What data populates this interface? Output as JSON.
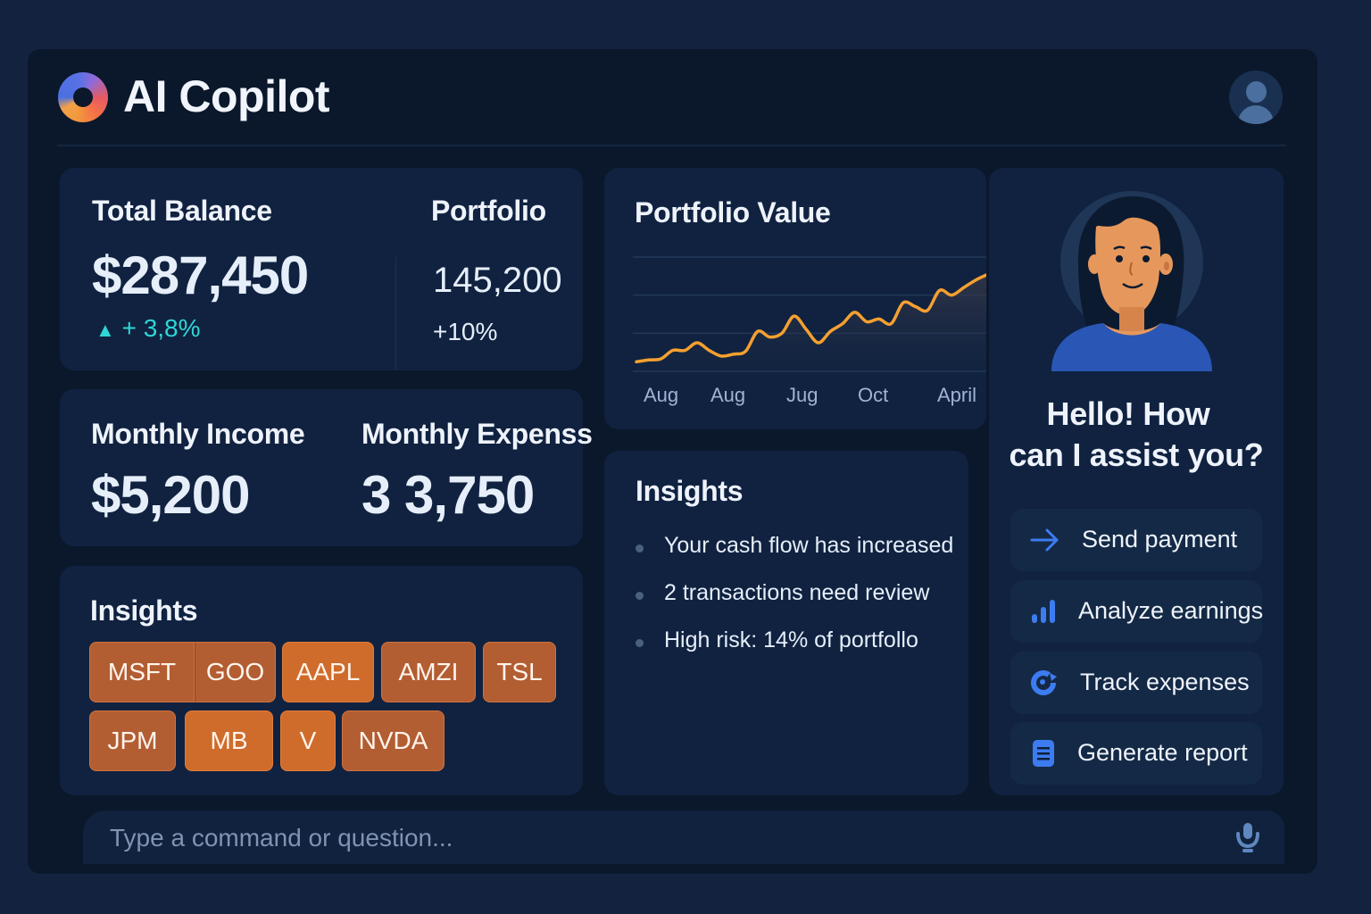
{
  "app": {
    "title": "AI Copilot",
    "logo_icon": "gradient-ring-logo",
    "profile_icon": "user-avatar-icon"
  },
  "colors": {
    "page_bg": "#13233f",
    "window_bg": "#0b182b",
    "card_bg": "#102240",
    "accent_orange": "#f5a030",
    "positive_teal": "#2fd6d6",
    "action_blue": "#3d7cf0",
    "chip_orange_dark": "#b35d33",
    "chip_orange_light": "#cf6c2c"
  },
  "balance_card": {
    "total_label": "Total Balance",
    "total_value": "$287,450",
    "total_change_icon": "triangle-up-icon",
    "total_change": "+ 3,8%",
    "portfolio_label": "Portfolio",
    "portfolio_value": "145,200",
    "portfolio_change": "+10%"
  },
  "monthly_card": {
    "income_label": "Monthly Income",
    "income_value": "$5,200",
    "expense_label": "Monthly Expenss",
    "expense_value": "3 3,750"
  },
  "tickers_card": {
    "title": "Insights",
    "tickers": [
      "MSFT",
      "GOO",
      "AAPL",
      "AMZI",
      "TSL",
      "JPM",
      "MB",
      "V",
      "NVDA"
    ]
  },
  "chart_card": {
    "title": "Portfolio Value"
  },
  "chart_data": {
    "type": "area",
    "title": "Portfolio Value",
    "categories": [
      "Aug",
      "Aug",
      "Jug",
      "Oct",
      "April"
    ],
    "x": [
      0,
      1,
      2,
      3,
      4,
      5,
      6,
      7,
      8,
      9,
      10,
      11,
      12,
      13,
      14,
      15,
      16,
      17,
      18,
      19,
      20,
      21,
      22,
      23,
      24,
      25,
      26,
      27,
      28,
      29
    ],
    "series": [
      {
        "name": "Portfolio Value",
        "color": "#f5a030",
        "values": [
          10,
          12,
          13,
          22,
          22,
          30,
          22,
          16,
          18,
          21,
          42,
          36,
          40,
          58,
          44,
          30,
          42,
          50,
          62,
          52,
          55,
          50,
          72,
          68,
          64,
          85,
          80,
          88,
          96,
          102
        ]
      }
    ],
    "grid": true,
    "gridlines": 4,
    "xlabel": "",
    "ylabel": "",
    "ylim": [
      0,
      120
    ],
    "legend": "none"
  },
  "insights_card": {
    "title": "Insights",
    "items": [
      "Your cash flow has increased",
      "2 transactions need review",
      "High risk: 14% of portfollo"
    ]
  },
  "assistant": {
    "avatar_icon": "assistant-avatar",
    "greeting_line1": "Hello! How",
    "greeting_line2": "can I assist you?",
    "actions": [
      {
        "label": "Send payment",
        "icon": "arrow-right-icon"
      },
      {
        "label": "Analyze earnings",
        "icon": "bar-chart-icon"
      },
      {
        "label": "Track expenses",
        "icon": "refresh-icon"
      },
      {
        "label": "Generate report",
        "icon": "document-icon"
      }
    ]
  },
  "command_bar": {
    "placeholder": "Type a command or question...",
    "value": "",
    "mic_icon": "microphone-icon"
  }
}
